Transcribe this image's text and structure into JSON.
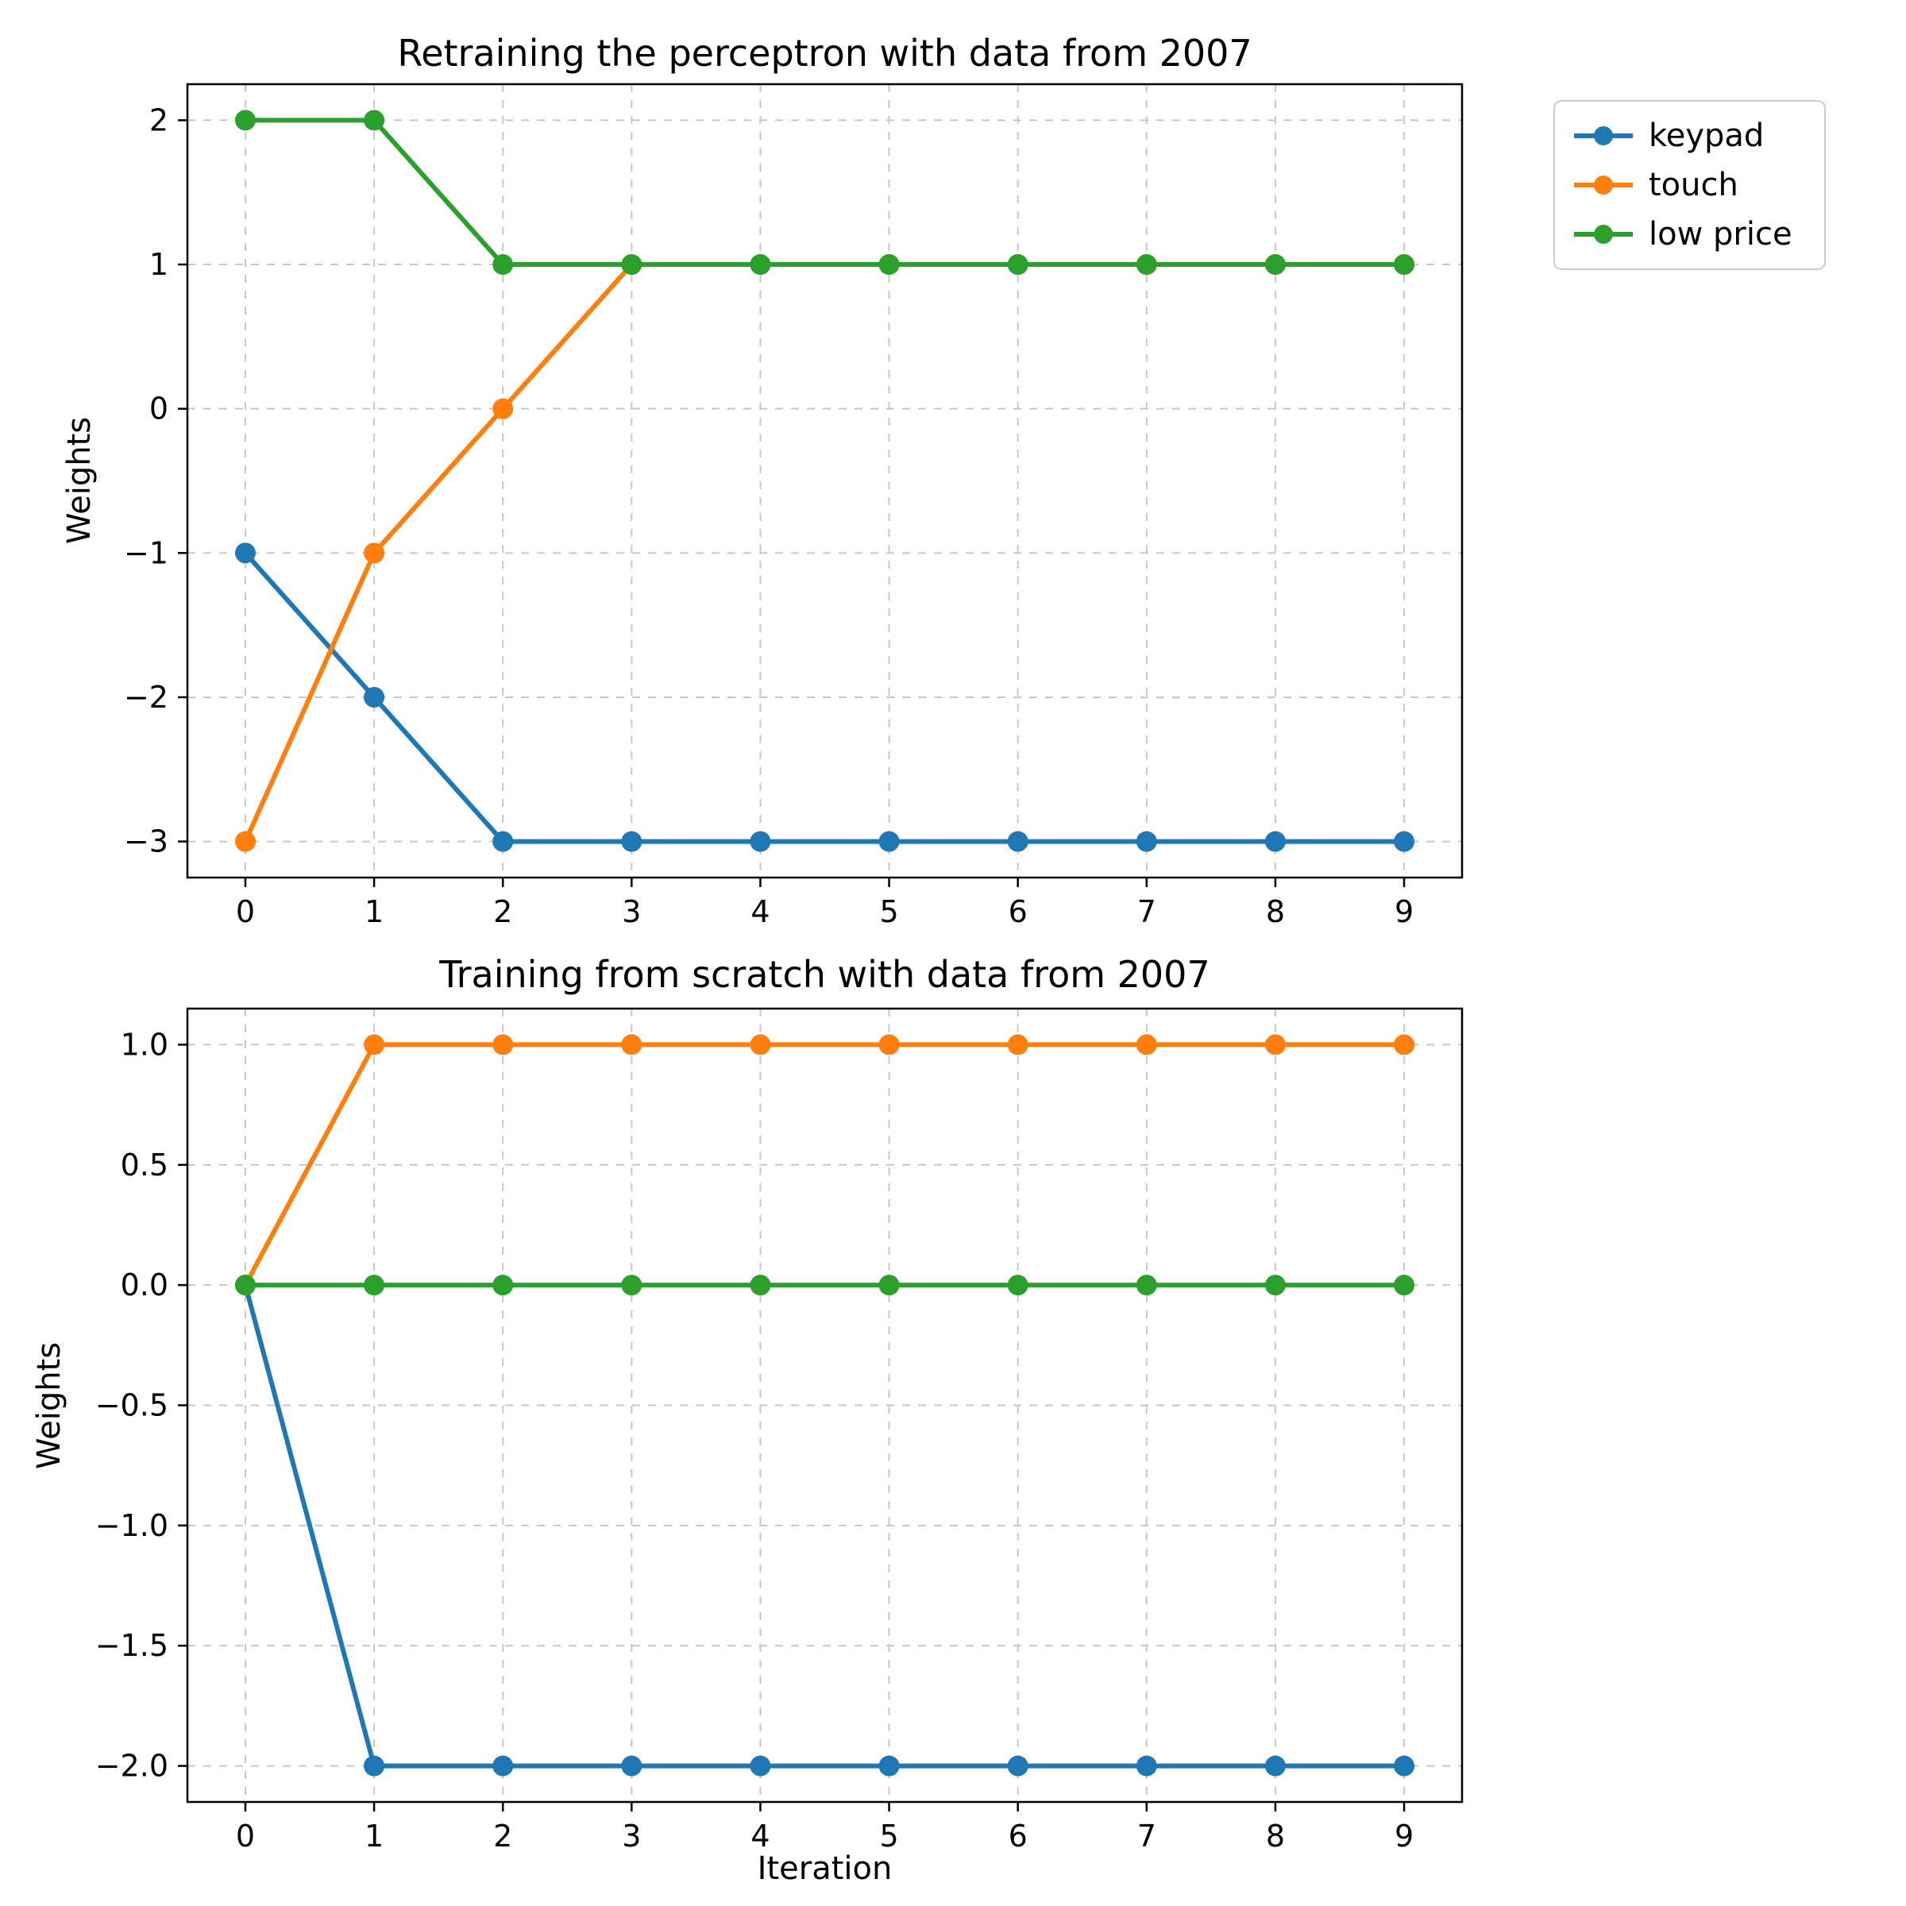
{
  "figure": {
    "background": "#ffffff",
    "grid_color": "#c7c7c7",
    "axis_color": "#000000",
    "text_color": "#000000"
  },
  "legend": {
    "visible": true,
    "position": "outside-top-right",
    "entries": [
      {
        "label": "keypad",
        "color": "#1f77b4",
        "marker": "circle"
      },
      {
        "label": "touch",
        "color": "#ff7f0e",
        "marker": "circle"
      },
      {
        "label": "low price",
        "color": "#2ca02c",
        "marker": "circle"
      }
    ]
  },
  "chart_data": [
    {
      "type": "line",
      "title": "Retraining the perceptron with data from 2007",
      "xlabel": "",
      "ylabel": "Weights",
      "x": [
        0,
        1,
        2,
        3,
        4,
        5,
        6,
        7,
        8,
        9
      ],
      "xtick_labels": [
        "0",
        "1",
        "2",
        "3",
        "4",
        "5",
        "6",
        "7",
        "8",
        "9"
      ],
      "yticks": [
        2,
        1,
        0,
        -1,
        -2,
        -3
      ],
      "ytick_labels": [
        "2",
        "1",
        "0",
        "−1",
        "−2",
        "−3"
      ],
      "xlim": [
        -0.45,
        9.45
      ],
      "ylim": [
        -3.25,
        2.25
      ],
      "grid": true,
      "marker": "circle",
      "series": [
        {
          "name": "keypad",
          "color": "#1f77b4",
          "values": [
            -1,
            -2,
            -3,
            -3,
            -3,
            -3,
            -3,
            -3,
            -3,
            -3
          ]
        },
        {
          "name": "touch",
          "color": "#ff7f0e",
          "values": [
            -3,
            -1,
            0,
            1,
            1,
            1,
            1,
            1,
            1,
            1
          ]
        },
        {
          "name": "low price",
          "color": "#2ca02c",
          "values": [
            2,
            2,
            1,
            1,
            1,
            1,
            1,
            1,
            1,
            1
          ]
        }
      ]
    },
    {
      "type": "line",
      "title": "Training from scratch with data from 2007",
      "xlabel": "Iteration",
      "ylabel": "Weights",
      "x": [
        0,
        1,
        2,
        3,
        4,
        5,
        6,
        7,
        8,
        9
      ],
      "xtick_labels": [
        "0",
        "1",
        "2",
        "3",
        "4",
        "5",
        "6",
        "7",
        "8",
        "9"
      ],
      "yticks": [
        1.0,
        0.5,
        0.0,
        -0.5,
        -1.0,
        -1.5,
        -2.0
      ],
      "ytick_labels": [
        "1.0",
        "0.5",
        "0.0",
        "−0.5",
        "−1.0",
        "−1.5",
        "−2.0"
      ],
      "xlim": [
        -0.45,
        9.45
      ],
      "ylim": [
        -2.15,
        1.15
      ],
      "grid": true,
      "marker": "circle",
      "series": [
        {
          "name": "keypad",
          "color": "#1f77b4",
          "values": [
            0,
            -2,
            -2,
            -2,
            -2,
            -2,
            -2,
            -2,
            -2,
            -2
          ]
        },
        {
          "name": "touch",
          "color": "#ff7f0e",
          "values": [
            0,
            1,
            1,
            1,
            1,
            1,
            1,
            1,
            1,
            1
          ]
        },
        {
          "name": "low price",
          "color": "#2ca02c",
          "values": [
            0,
            0,
            0,
            0,
            0,
            0,
            0,
            0,
            0,
            0
          ]
        }
      ]
    }
  ]
}
